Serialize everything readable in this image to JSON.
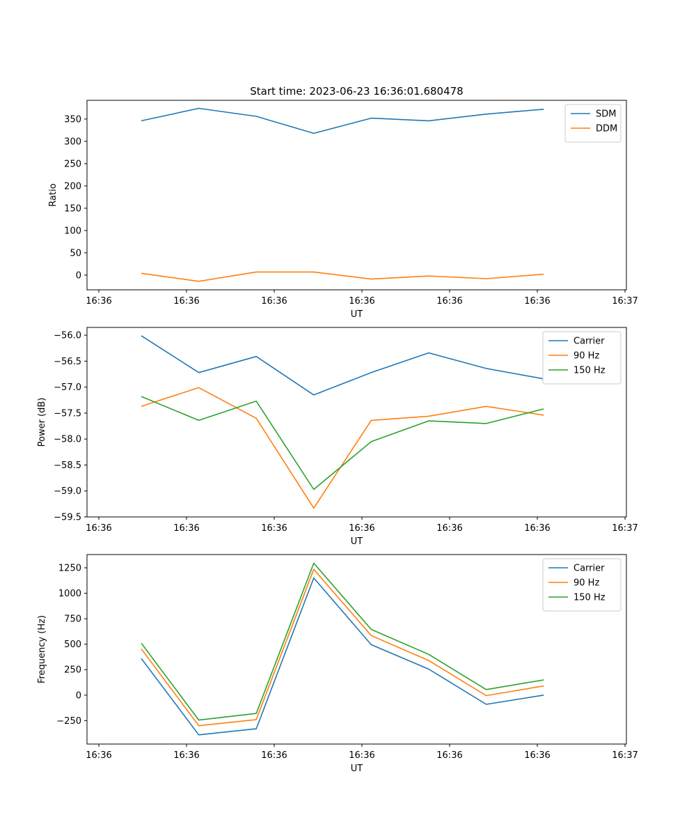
{
  "chart_data": [
    {
      "type": "line",
      "title": "Start time: 2023-06-23 16:36:01.680478",
      "xlabel": "UT",
      "ylabel": "Ratio",
      "x_tick_labels": [
        "16:36",
        "16:36",
        "16:36",
        "16:36",
        "16:36",
        "16:36",
        "16:37"
      ],
      "yticks": [
        0,
        50,
        100,
        150,
        200,
        250,
        300,
        350
      ],
      "ytick_labels": [
        "0",
        "50",
        "100",
        "150",
        "200",
        "250",
        "300",
        "350"
      ],
      "ylim": [
        -33,
        392
      ],
      "legend_position": "top-right",
      "grid": false,
      "series": [
        {
          "name": "SDM",
          "color": "#1f77b4",
          "values": [
            346,
            374,
            356,
            318,
            352,
            346,
            361,
            372
          ]
        },
        {
          "name": "DDM",
          "color": "#ff7f0e",
          "values": [
            4,
            -14,
            7,
            7,
            -9,
            -2,
            -8,
            2
          ]
        }
      ]
    },
    {
      "type": "line",
      "title": "",
      "xlabel": "UT",
      "ylabel": "Power (dB)",
      "x_tick_labels": [
        "16:36",
        "16:36",
        "16:36",
        "16:36",
        "16:36",
        "16:36",
        "16:37"
      ],
      "yticks": [
        -59.5,
        -59.0,
        -58.5,
        -58.0,
        -57.5,
        -57.0,
        -56.5,
        -56.0
      ],
      "ytick_labels": [
        "−59.5",
        "−59.0",
        "−58.5",
        "−58.0",
        "−57.5",
        "−57.0",
        "−56.5",
        "−56.0"
      ],
      "ylim": [
        -59.5,
        -55.85
      ],
      "legend_position": "top-right",
      "grid": false,
      "series": [
        {
          "name": "Carrier",
          "color": "#1f77b4",
          "values": [
            -56.01,
            -56.72,
            -56.41,
            -57.15,
            -56.72,
            -56.34,
            -56.64,
            -56.84
          ]
        },
        {
          "name": "90 Hz",
          "color": "#ff7f0e",
          "values": [
            -57.37,
            -57.01,
            -57.6,
            -59.33,
            -57.64,
            -57.56,
            -57.37,
            -57.54
          ]
        },
        {
          "name": "150 Hz",
          "color": "#2ca02c",
          "values": [
            -57.18,
            -57.64,
            -57.27,
            -58.97,
            -58.05,
            -57.65,
            -57.7,
            -57.42
          ]
        }
      ]
    },
    {
      "type": "line",
      "title": "",
      "xlabel": "UT",
      "ylabel": "Frequency (Hz)",
      "x_tick_labels": [
        "16:36",
        "16:36",
        "16:36",
        "16:36",
        "16:36",
        "16:36",
        "16:37"
      ],
      "yticks": [
        -250,
        0,
        250,
        500,
        750,
        1000,
        1250
      ],
      "ytick_labels": [
        "−250",
        "0",
        "250",
        "500",
        "750",
        "1000",
        "1250"
      ],
      "ylim": [
        -480,
        1380
      ],
      "legend_position": "top-right",
      "grid": false,
      "series": [
        {
          "name": "Carrier",
          "color": "#1f77b4",
          "values": [
            360,
            -390,
            -330,
            1150,
            495,
            255,
            -90,
            0
          ]
        },
        {
          "name": "90 Hz",
          "color": "#ff7f0e",
          "values": [
            455,
            -300,
            -240,
            1235,
            585,
            340,
            -5,
            90
          ]
        },
        {
          "name": "150 Hz",
          "color": "#2ca02c",
          "values": [
            510,
            -245,
            -180,
            1295,
            645,
            400,
            55,
            150
          ]
        }
      ]
    }
  ]
}
